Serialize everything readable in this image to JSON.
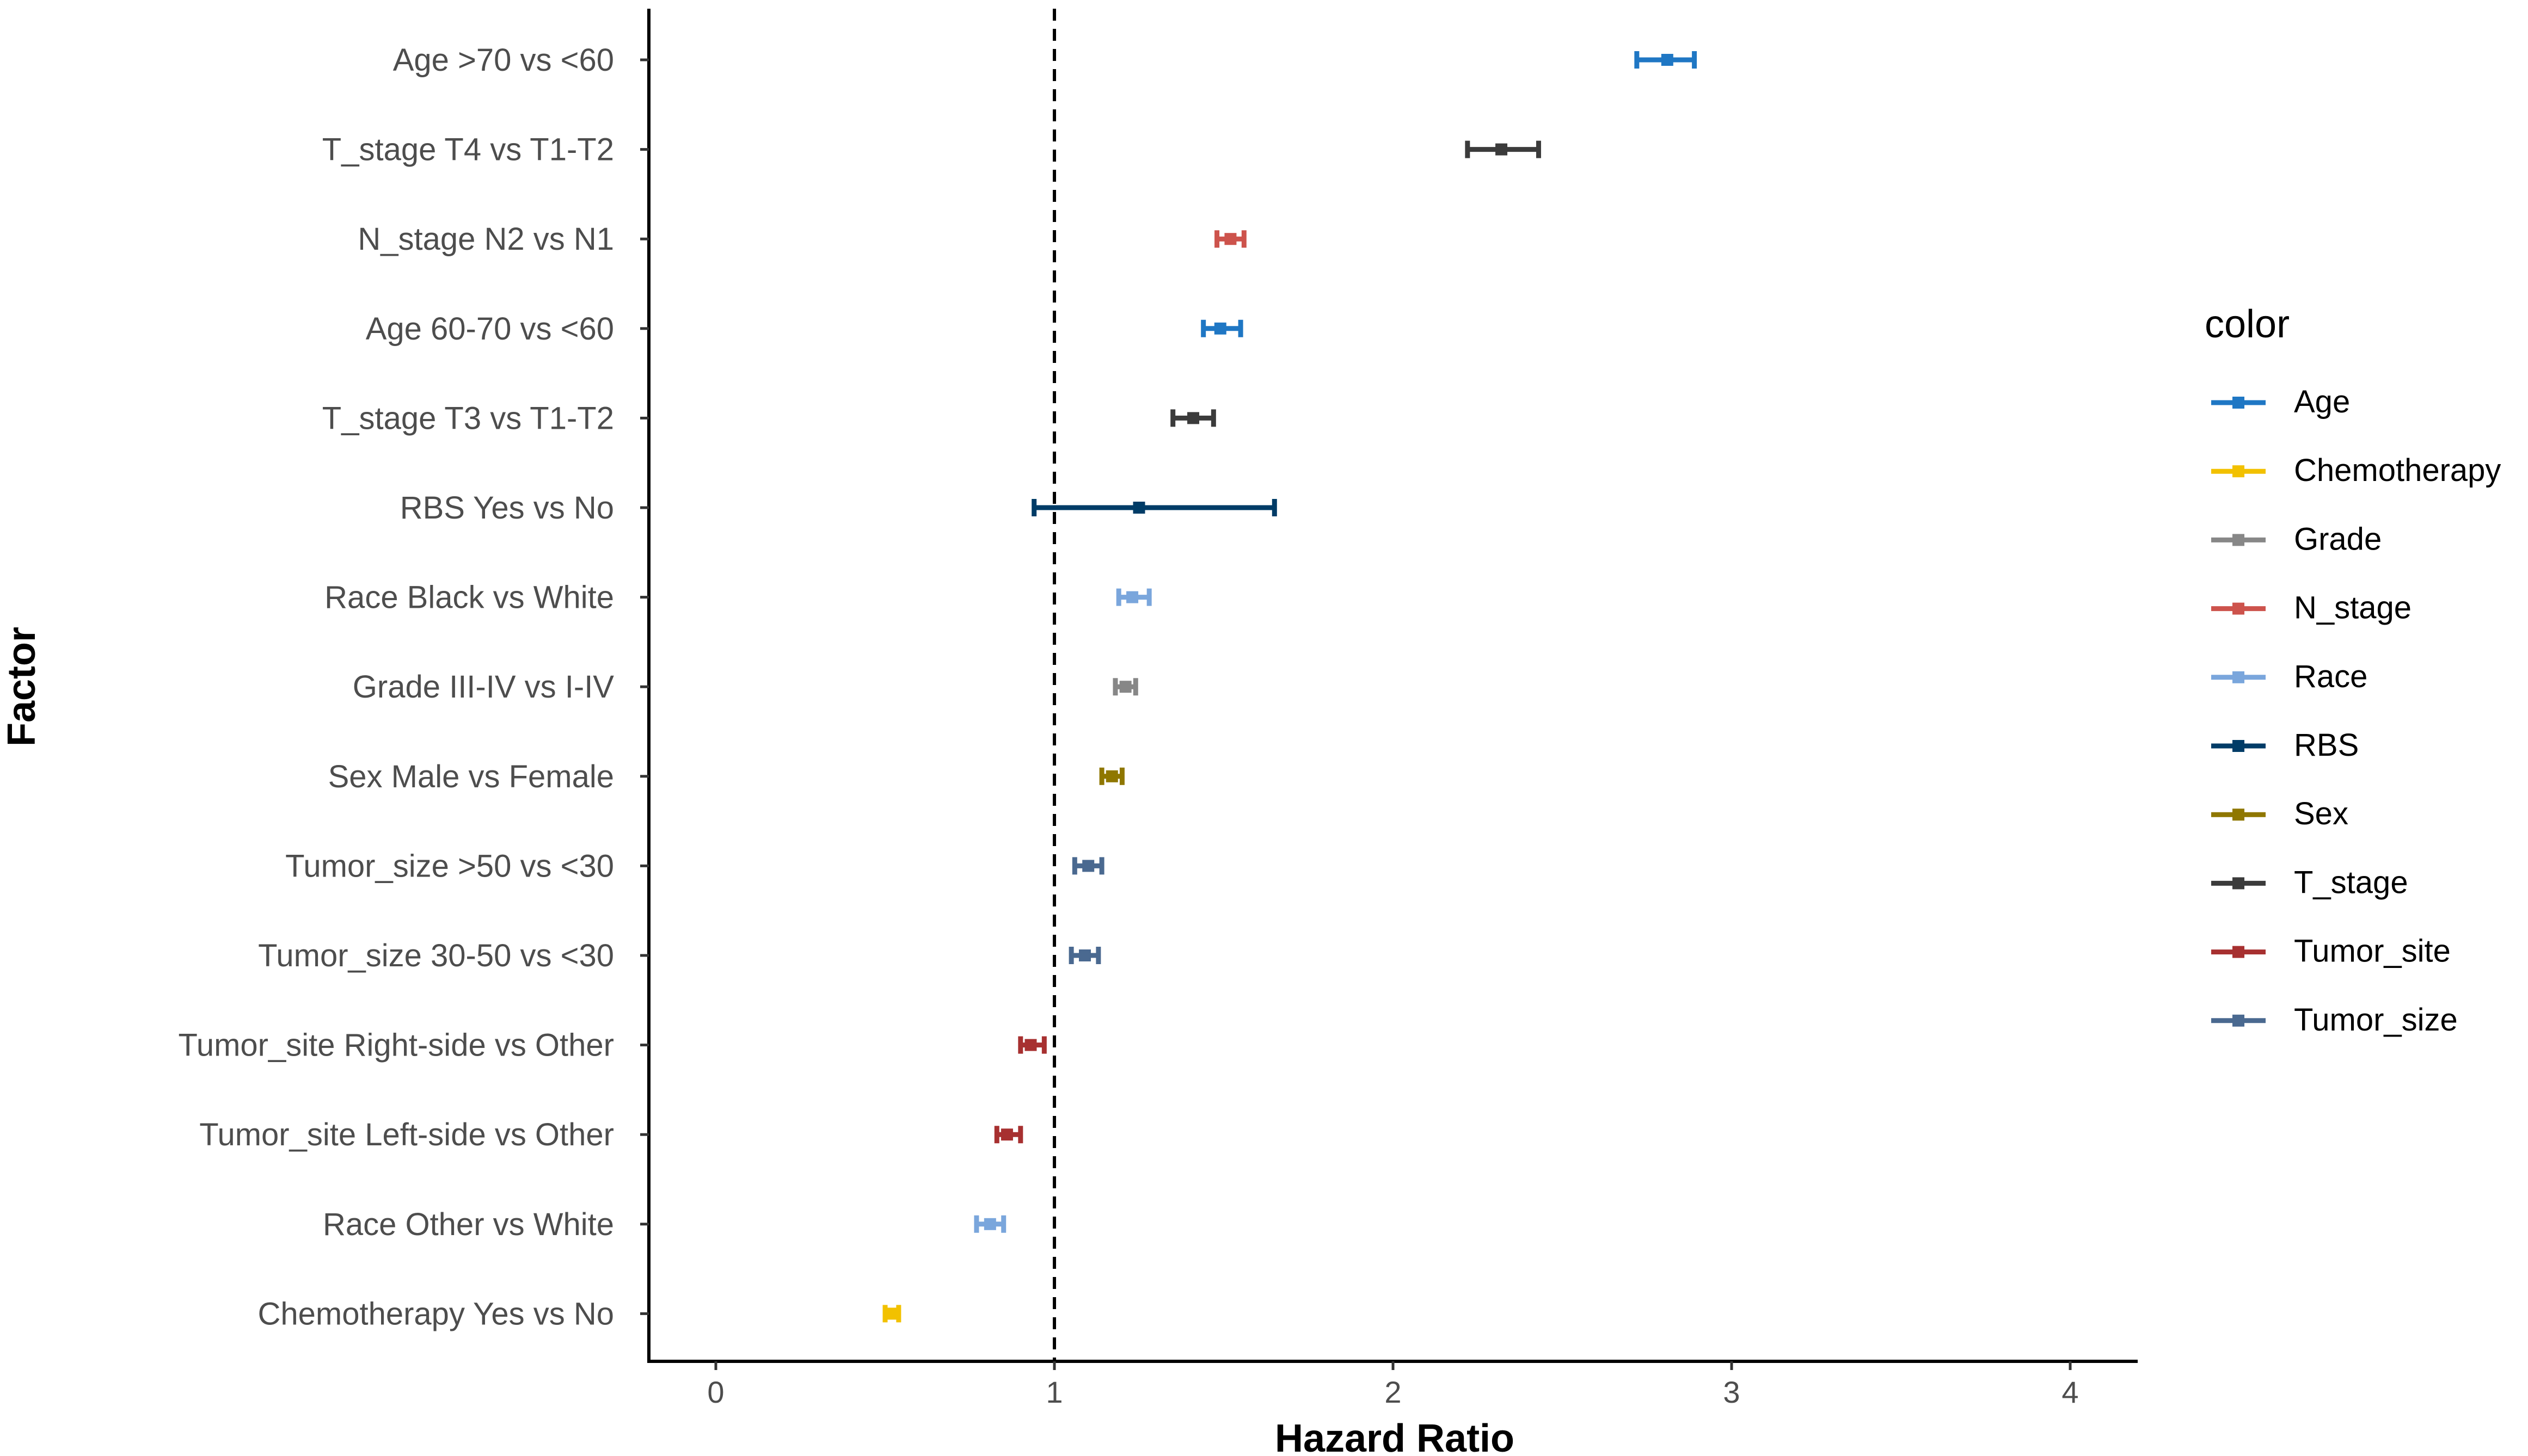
{
  "chart_data": {
    "type": "forest",
    "xlabel": "Hazard Ratio",
    "ylabel": "Factor",
    "xlim": [
      -0.2,
      4.2
    ],
    "xticks": [
      0,
      1,
      2,
      3,
      4
    ],
    "xtick_labels": [
      "0",
      "1",
      "2",
      "3",
      "4"
    ],
    "reference_line": 1,
    "legend": {
      "title": "color",
      "position": "right",
      "entries": [
        {
          "label": "Age",
          "color": "#1f77c4"
        },
        {
          "label": "Chemotherapy",
          "color": "#f2c100"
        },
        {
          "label": "Grade",
          "color": "#878787"
        },
        {
          "label": "N_stage",
          "color": "#cd534c"
        },
        {
          "label": "Race",
          "color": "#7aa6dc"
        },
        {
          "label": "RBS",
          "color": "#003c67"
        },
        {
          "label": "Sex",
          "color": "#8f7700"
        },
        {
          "label": "T_stage",
          "color": "#3b3b3b"
        },
        {
          "label": "Tumor_site",
          "color": "#a73030"
        },
        {
          "label": "Tumor_size",
          "color": "#4a6990"
        }
      ]
    },
    "rows": [
      {
        "label": "Age >70 vs <60 ",
        "group": "Age",
        "hr": 2.81,
        "lower": 2.72,
        "upper": 2.89
      },
      {
        "label": "T_stage T4 vs T1-T2",
        "group": "T_stage",
        "hr": 2.32,
        "lower": 2.22,
        "upper": 2.43
      },
      {
        "label": "N_stage N2 vs N1",
        "group": "N_stage",
        "hr": 1.52,
        "lower": 1.48,
        "upper": 1.56
      },
      {
        "label": "Age 60-70 vs <60",
        "group": "Age",
        "hr": 1.49,
        "lower": 1.44,
        "upper": 1.55
      },
      {
        "label": "T_stage T3 vs T1-T2",
        "group": "T_stage",
        "hr": 1.41,
        "lower": 1.35,
        "upper": 1.47
      },
      {
        "label": "RBS Yes vs No",
        "group": "RBS",
        "hr": 1.25,
        "lower": 0.94,
        "upper": 1.65
      },
      {
        "label": "Race Black vs White",
        "group": "Race",
        "hr": 1.23,
        "lower": 1.19,
        "upper": 1.28
      },
      {
        "label": "Grade III-IV vs I-IV",
        "group": "Grade",
        "hr": 1.21,
        "lower": 1.18,
        "upper": 1.24
      },
      {
        "label": "Sex Male vs Female",
        "group": "Sex",
        "hr": 1.17,
        "lower": 1.14,
        "upper": 1.2
      },
      {
        "label": "Tumor_size >50 vs <30",
        "group": "Tumor_size",
        "hr": 1.1,
        "lower": 1.06,
        "upper": 1.14
      },
      {
        "label": "Tumor_size 30-50 vs <30",
        "group": "Tumor_size",
        "hr": 1.09,
        "lower": 1.05,
        "upper": 1.13
      },
      {
        "label": "Tumor_site Right-side vs Other",
        "group": "Tumor_site",
        "hr": 0.93,
        "lower": 0.9,
        "upper": 0.97
      },
      {
        "label": "Tumor_site Left-side vs Other",
        "group": "Tumor_site",
        "hr": 0.86,
        "lower": 0.83,
        "upper": 0.9
      },
      {
        "label": "Race Other vs White",
        "group": "Race",
        "hr": 0.81,
        "lower": 0.77,
        "upper": 0.85
      },
      {
        "label": "Chemotherapy Yes vs No",
        "group": "Chemotherapy",
        "hr": 0.52,
        "lower": 0.5,
        "upper": 0.54
      }
    ]
  }
}
